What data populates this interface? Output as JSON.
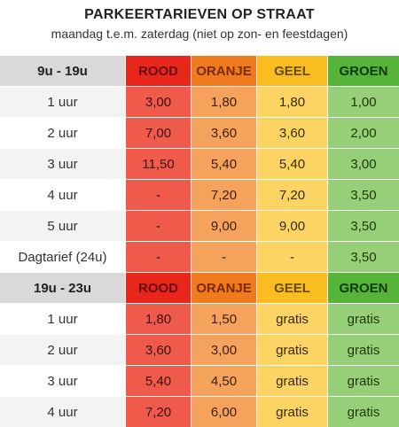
{
  "title": "PARKEERTARIEVEN OP STRAAT",
  "subtitle": "maandag t.e.m. zaterdag (niet op zon- en feestdagen)",
  "colors": {
    "rood_header": "#e8261c",
    "oranje_header": "#f07a1e",
    "geel_header": "#f9bd21",
    "groen_header": "#57b43a",
    "rood_cell": "#ef5a4b",
    "oranje_cell": "#f4a25c",
    "geel_cell": "#fbd463",
    "groen_cell": "#96cf78"
  },
  "sections": [
    {
      "header": [
        "9u - 19u",
        "ROOD",
        "ORANJE",
        "GEEL",
        "GROEN"
      ],
      "rows": [
        [
          "1 uur",
          "3,00",
          "1,80",
          "1,80",
          "1,00"
        ],
        [
          "2 uur",
          "7,00",
          "3,60",
          "3,60",
          "2,00"
        ],
        [
          "3 uur",
          "11,50",
          "5,40",
          "5,40",
          "3,00"
        ],
        [
          "4 uur",
          "-",
          "7,20",
          "7,20",
          "3,50"
        ],
        [
          "5 uur",
          "-",
          "9,00",
          "9,00",
          "3,50"
        ],
        [
          "Dagtarief (24u)",
          "-",
          "-",
          "-",
          "3,50"
        ]
      ]
    },
    {
      "header": [
        "19u - 23u",
        "ROOD",
        "ORANJE",
        "GEEL",
        "GROEN"
      ],
      "rows": [
        [
          "1 uur",
          "1,80",
          "1,50",
          "gratis",
          "gratis"
        ],
        [
          "2 uur",
          "3,60",
          "3,00",
          "gratis",
          "gratis"
        ],
        [
          "3 uur",
          "5,40",
          "4,50",
          "gratis",
          "gratis"
        ],
        [
          "4 uur",
          "7,20",
          "6,00",
          "gratis",
          "gratis"
        ]
      ]
    }
  ]
}
